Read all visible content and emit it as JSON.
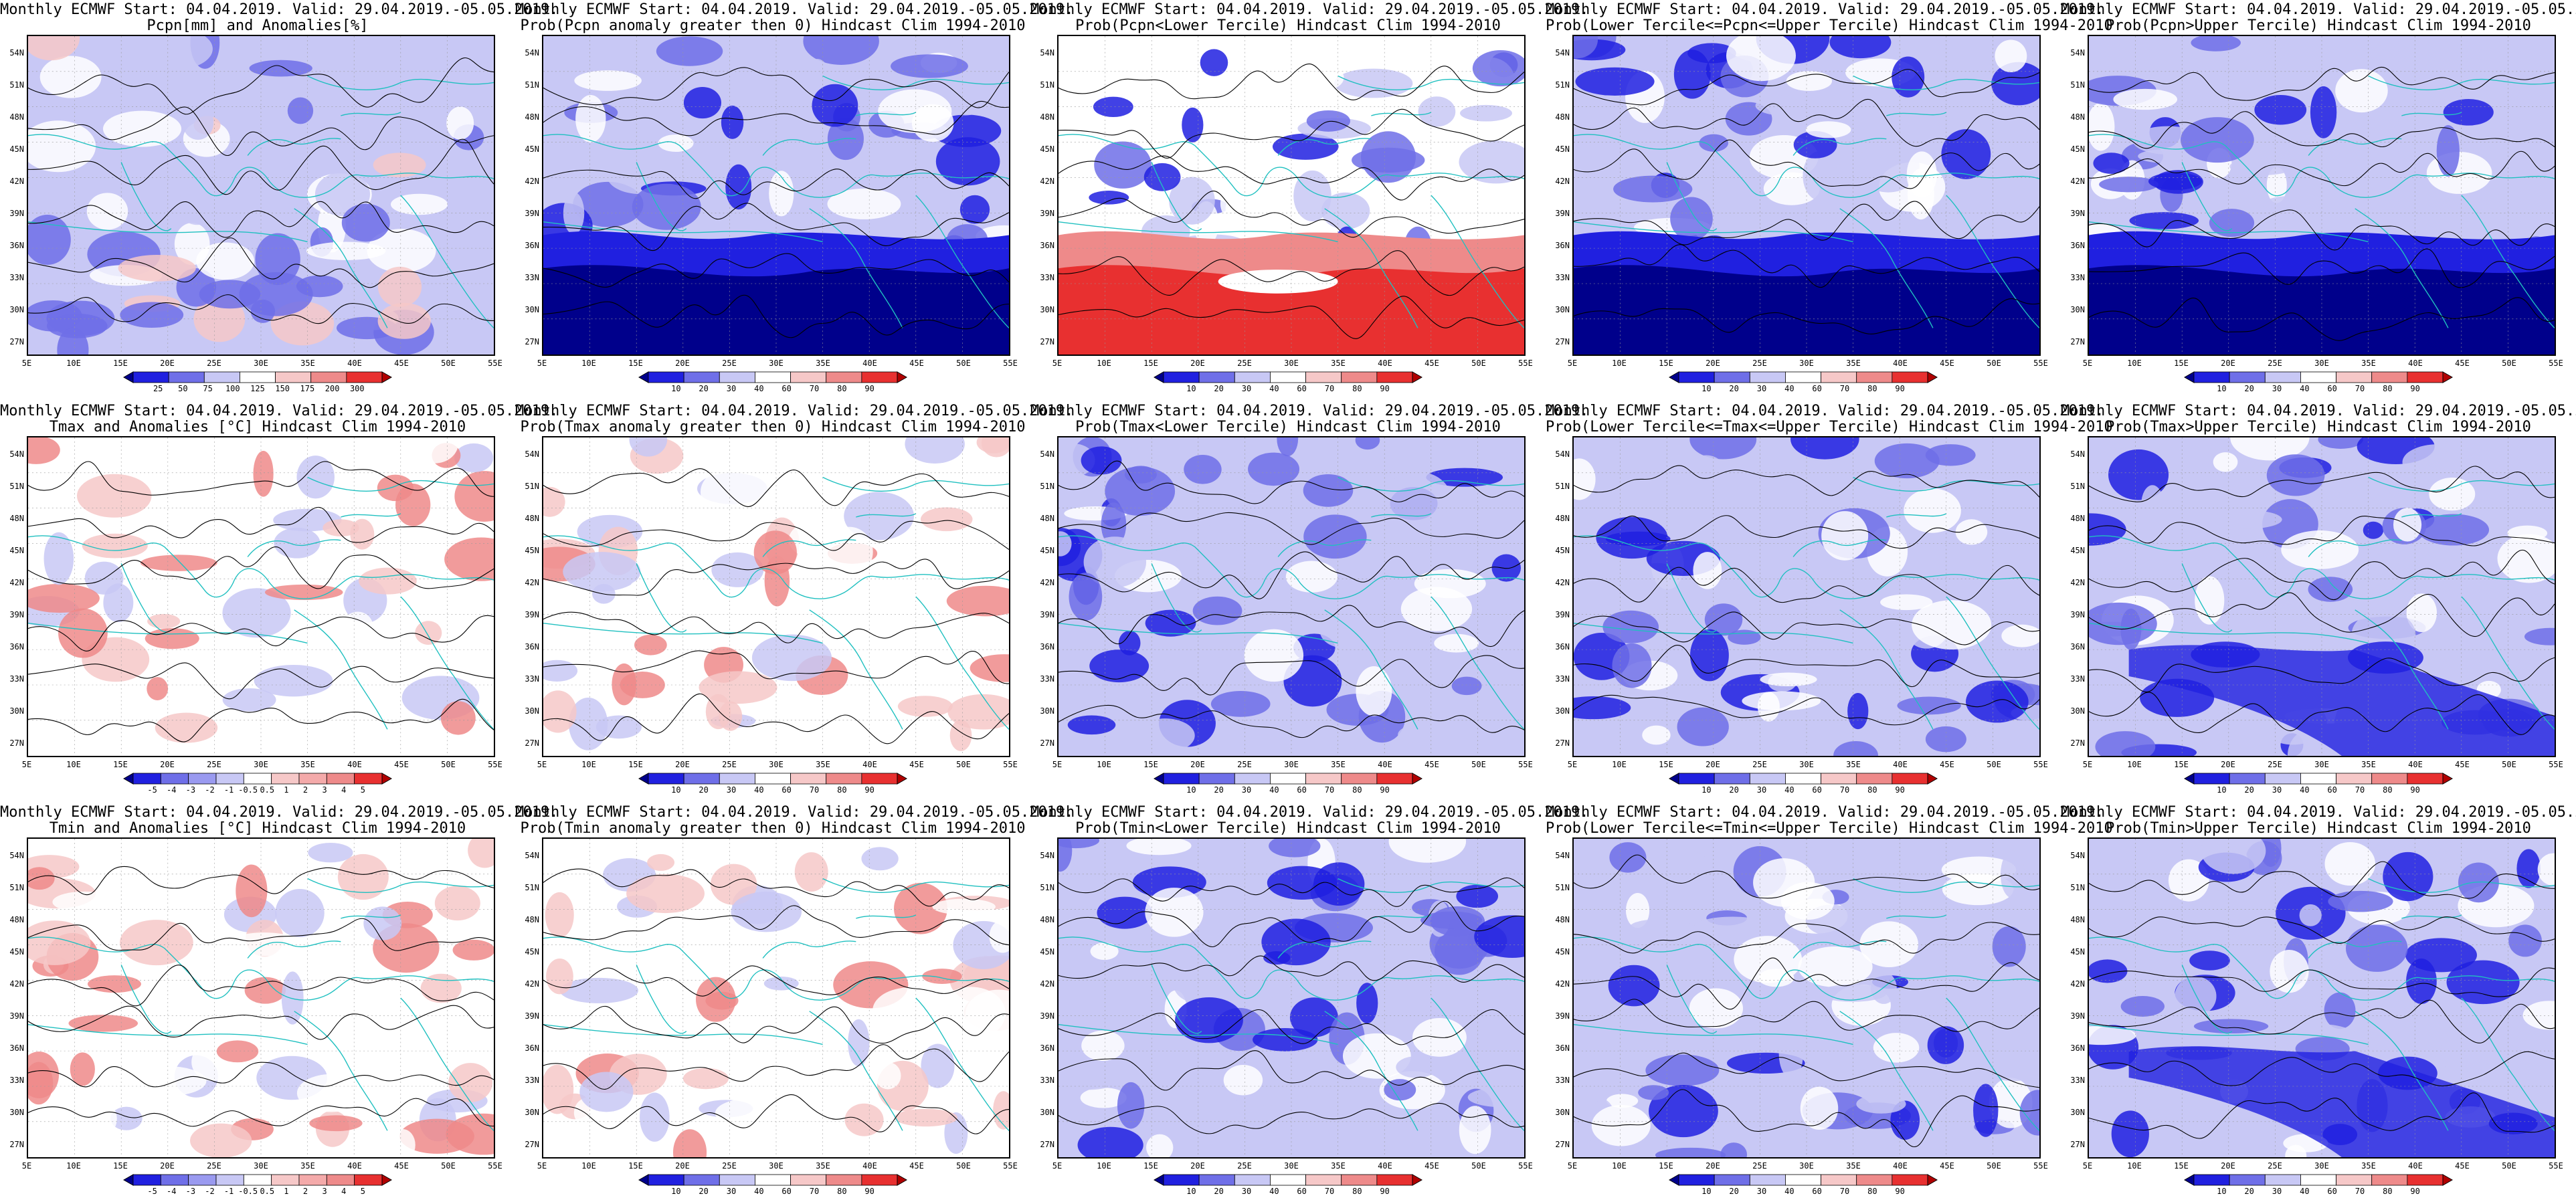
{
  "title_line1": "Monthly ECMWF Start: 04.04.2019. Valid: 29.04.2019.-05.05.2019.",
  "lat_labels": [
    "54N",
    "51N",
    "48N",
    "45N",
    "42N",
    "39N",
    "36N",
    "33N",
    "30N",
    "27N"
  ],
  "lon_labels": [
    "5E",
    "10E",
    "15E",
    "20E",
    "25E",
    "30E",
    "35E",
    "40E",
    "45E",
    "50E",
    "55E"
  ],
  "colors": {
    "dark_blue": "#00008b",
    "blue": "#2020e0",
    "mid_blue": "#6f6fe8",
    "light_blue": "#c8c8f5",
    "white": "#ffffff",
    "light_red": "#f6c8c8",
    "mid_red": "#ee8a8a",
    "red": "#e83030",
    "dark_red": "#b00000",
    "coast": "#20c0c0",
    "contour": "#000000"
  },
  "rows": [
    {
      "variable": "Pcpn",
      "panels": [
        {
          "name": "pcpn-anomaly-map",
          "title2": "Pcpn[mm] and Anomalies[%]",
          "scale": "anom",
          "palette": "pcpn",
          "cbar_labels": [
            "25",
            "50",
            "75",
            "100",
            "125",
            "150",
            "175",
            "200",
            "300"
          ]
        },
        {
          "name": "pcpn-prob-positive-map",
          "title2": "Prob(Pcpn anomaly greater then 0) Hindcast Clim 1994-2010",
          "scale": "prob",
          "palette": "prob",
          "cbar_labels": [
            "10",
            "20",
            "30",
            "40",
            "60",
            "70",
            "80",
            "90"
          ]
        },
        {
          "name": "pcpn-prob-lower-map",
          "title2": "Prob(Pcpn<Lower Tercile) Hindcast Clim 1994-2010",
          "scale": "prob",
          "palette": "prob",
          "cbar_labels": [
            "10",
            "20",
            "30",
            "40",
            "60",
            "70",
            "80",
            "90"
          ]
        },
        {
          "name": "pcpn-prob-middle-map",
          "title2": "Prob(Lower Tercile<=Pcpn<=Upper Tercile) Hindcast Clim 1994-2010",
          "scale": "prob",
          "palette": "prob",
          "cbar_labels": [
            "10",
            "20",
            "30",
            "40",
            "60",
            "70",
            "80",
            "90"
          ]
        },
        {
          "name": "pcpn-prob-upper-map",
          "title2": "Prob(Pcpn>Upper Tercile) Hindcast Clim 1994-2010",
          "scale": "prob",
          "palette": "prob",
          "cbar_labels": [
            "10",
            "20",
            "30",
            "40",
            "60",
            "70",
            "80",
            "90"
          ]
        }
      ]
    },
    {
      "variable": "Tmax",
      "panels": [
        {
          "name": "tmax-anomaly-map",
          "title2": "Tmax and Anomalies [°C] Hindcast Clim 1994-2010",
          "scale": "anom",
          "palette": "temp",
          "cbar_labels": [
            "-5",
            "-4",
            "-3",
            "-2",
            "-1",
            "-0.5",
            "0.5",
            "1",
            "2",
            "3",
            "4",
            "5"
          ]
        },
        {
          "name": "tmax-prob-positive-map",
          "title2": "Prob(Tmax anomaly greater then 0) Hindcast Clim 1994-2010",
          "scale": "prob",
          "palette": "prob",
          "cbar_labels": [
            "10",
            "20",
            "30",
            "40",
            "60",
            "70",
            "80",
            "90"
          ]
        },
        {
          "name": "tmax-prob-lower-map",
          "title2": "Prob(Tmax<Lower Tercile) Hindcast Clim 1994-2010",
          "scale": "prob",
          "palette": "prob",
          "cbar_labels": [
            "10",
            "20",
            "30",
            "40",
            "60",
            "70",
            "80",
            "90"
          ]
        },
        {
          "name": "tmax-prob-middle-map",
          "title2": "Prob(Lower Tercile<=Tmax<=Upper Tercile) Hindcast Clim 1994-2010",
          "scale": "prob",
          "palette": "prob",
          "cbar_labels": [
            "10",
            "20",
            "30",
            "40",
            "60",
            "70",
            "80",
            "90"
          ]
        },
        {
          "name": "tmax-prob-upper-map",
          "title2": "Prob(Tmax>Upper Tercile) Hindcast Clim 1994-2010",
          "scale": "prob",
          "palette": "prob",
          "cbar_labels": [
            "10",
            "20",
            "30",
            "40",
            "60",
            "70",
            "80",
            "90"
          ]
        }
      ]
    },
    {
      "variable": "Tmin",
      "panels": [
        {
          "name": "tmin-anomaly-map",
          "title2": "Tmin and Anomalies [°C] Hindcast Clim 1994-2010",
          "scale": "anom",
          "palette": "temp",
          "cbar_labels": [
            "-5",
            "-4",
            "-3",
            "-2",
            "-1",
            "-0.5",
            "0.5",
            "1",
            "2",
            "3",
            "4",
            "5"
          ]
        },
        {
          "name": "tmin-prob-positive-map",
          "title2": "Prob(Tmin anomaly greater then 0) Hindcast Clim 1994-2010",
          "scale": "prob",
          "palette": "prob",
          "cbar_labels": [
            "10",
            "20",
            "30",
            "40",
            "60",
            "70",
            "80",
            "90"
          ]
        },
        {
          "name": "tmin-prob-lower-map",
          "title2": "Prob(Tmin<Lower Tercile) Hindcast Clim 1994-2010",
          "scale": "prob",
          "palette": "prob",
          "cbar_labels": [
            "10",
            "20",
            "30",
            "40",
            "60",
            "70",
            "80",
            "90"
          ]
        },
        {
          "name": "tmin-prob-middle-map",
          "title2": "Prob(Lower Tercile<=Tmin<=Upper Tercile) Hindcast Clim 1994-2010",
          "scale": "prob",
          "palette": "prob",
          "cbar_labels": [
            "10",
            "20",
            "30",
            "40",
            "60",
            "70",
            "80",
            "90"
          ]
        },
        {
          "name": "tmin-prob-upper-map",
          "title2": "Prob(Tmin>Upper Tercile) Hindcast Clim 1994-2010",
          "scale": "prob",
          "palette": "prob",
          "cbar_labels": [
            "10",
            "20",
            "30",
            "40",
            "60",
            "70",
            "80",
            "90"
          ]
        }
      ]
    }
  ]
}
